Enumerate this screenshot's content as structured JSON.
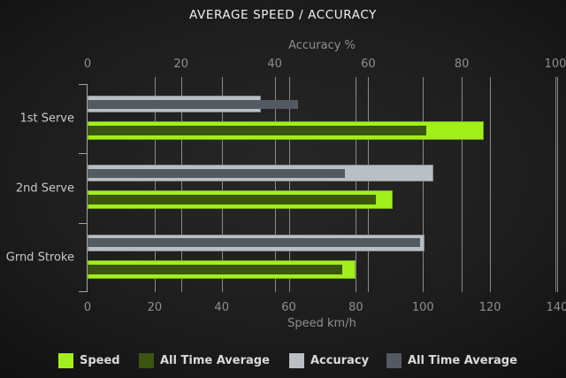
{
  "title": "AVERAGE SPEED / ACCURACY",
  "colors": {
    "speed": "#a2ef1c",
    "speed_avg": "#3b5510",
    "accuracy": "#b9bfc3",
    "accuracy_avg": "#535a62",
    "background": "#1e1e1e",
    "grid": "#9d9d9d",
    "text_bright": "#f0f0f0",
    "text_muted": "#8f8f8f"
  },
  "chart_data": {
    "type": "bar",
    "orientation": "horizontal",
    "title": "AVERAGE SPEED / ACCURACY",
    "categories": [
      "1st Serve",
      "2nd Serve",
      "Grnd Stroke"
    ],
    "series": [
      {
        "name": "Speed",
        "axis": "speed",
        "color": "#a2ef1c",
        "values": [
          118,
          91,
          80
        ]
      },
      {
        "name": "All Time Average",
        "axis": "speed",
        "color": "#3b5510",
        "values": [
          101,
          86,
          76
        ]
      },
      {
        "name": "Accuracy",
        "axis": "accuracy",
        "color": "#b9bfc3",
        "values": [
          37,
          74,
          72
        ]
      },
      {
        "name": "All Time Average",
        "axis": "accuracy",
        "color": "#535a62",
        "values": [
          45,
          55,
          71
        ]
      }
    ],
    "axes": {
      "top": {
        "label": "Accuracy %",
        "min": 0,
        "max": 100,
        "ticks": [
          0,
          20,
          40,
          60,
          80,
          100
        ]
      },
      "bottom": {
        "label": "Speed km/h",
        "min": 0,
        "max": 140,
        "ticks": [
          0,
          20,
          40,
          60,
          80,
          100,
          120,
          140
        ]
      }
    },
    "grid": true,
    "legend_position": "bottom"
  },
  "legend": {
    "items": [
      {
        "label": "Speed",
        "color": "#a2ef1c"
      },
      {
        "label": "All Time Average",
        "color": "#3b5510"
      },
      {
        "label": "Accuracy",
        "color": "#b9bfc3"
      },
      {
        "label": "All Time Average",
        "color": "#535a62"
      }
    ]
  }
}
